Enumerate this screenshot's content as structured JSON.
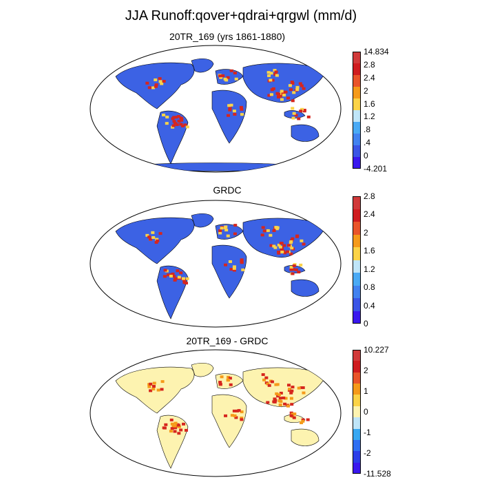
{
  "figure": {
    "title": "JJA Runoff:qover+qdrai+qrgwl (mm/d)"
  },
  "panels": [
    {
      "id": "model",
      "title": "20TR_169 (yrs 1861-1880)",
      "colorbar": {
        "colors": [
          "#3a18ee",
          "#3b55e6",
          "#4282f0",
          "#4aaaf5",
          "#bfe5f8",
          "#fcd347",
          "#f59a1a",
          "#e9542a",
          "#cf1c1f",
          "#d13a3a"
        ],
        "labels": [
          "-4.201",
          "0",
          ".4",
          ".8",
          "1.2",
          "1.6",
          "2",
          "2.4",
          "2.8",
          "14.834"
        ]
      },
      "palette": {
        "ocean": "#ffffff",
        "land": "#3c62e4",
        "high": "#d6261e",
        "mid": "#fbd34a"
      }
    },
    {
      "id": "obs",
      "title": "GRDC",
      "colorbar": {
        "colors": [
          "#3a18ee",
          "#3b55e6",
          "#4282f0",
          "#4aaaf5",
          "#bfe5f8",
          "#fcd347",
          "#f59a1a",
          "#e9542a",
          "#cf1c1f",
          "#d13a3a"
        ],
        "labels": [
          "0",
          "0.4",
          "0.8",
          "1.2",
          "1.6",
          "2",
          "2.4",
          "2.8"
        ]
      },
      "palette": {
        "ocean": "#ffffff",
        "land": "#3c62e4",
        "high": "#d6261e",
        "mid": "#fbd34a"
      }
    },
    {
      "id": "diff",
      "title": "20TR_169 - GRDC",
      "colorbar": {
        "colors": [
          "#3a18ee",
          "#2c3ee8",
          "#2f6ff2",
          "#39a8f2",
          "#bfe5f8",
          "#fdf3b0",
          "#fcd347",
          "#f59a1a",
          "#e9542a",
          "#cf1c1f",
          "#d13a3a"
        ],
        "labels": [
          "-11.528",
          "-2",
          "-1",
          "0",
          "1",
          "2",
          "10.227"
        ]
      },
      "palette": {
        "ocean": "#ffffff",
        "land": "#fdf3b0",
        "high": "#d6261e",
        "mid": "#f59a1a"
      }
    }
  ]
}
